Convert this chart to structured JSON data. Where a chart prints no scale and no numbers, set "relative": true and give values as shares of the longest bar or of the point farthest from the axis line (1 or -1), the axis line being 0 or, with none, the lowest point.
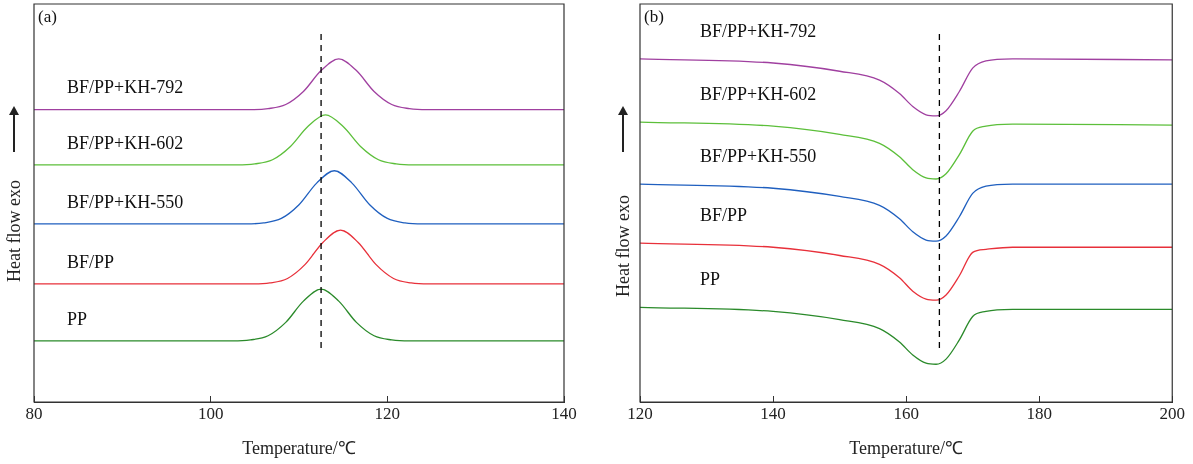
{
  "chart_data": [
    {
      "type": "line",
      "title": "(a)",
      "xlabel": "Temperature/℃",
      "ylabel": "Heat flow exo",
      "relative": true,
      "xlim": [
        80,
        140
      ],
      "xticks": [
        80,
        100,
        120,
        140
      ],
      "grid": false,
      "legend": false,
      "marker": "none",
      "line_style": "solid",
      "ref_lines": [
        {
          "axis": "x",
          "value": 112.5,
          "color": "#000000",
          "line_style": "dashed"
        }
      ],
      "series": [
        {
          "name": "BF/PP+KH-792",
          "color": "#a040a0",
          "x": [
            80,
            104.5,
            106.5,
            108.5,
            110.5,
            112.5,
            114.5,
            116.5,
            118.5,
            120.5,
            122.5,
            124.5,
            140
          ],
          "values": [
            0.852,
            0.852,
            0.855,
            0.867,
            0.905,
            0.966,
            1.0,
            0.966,
            0.905,
            0.867,
            0.855,
            0.852,
            0.852
          ]
        },
        {
          "name": "BF/PP+KH-602",
          "color": "#5cbf3a",
          "x": [
            80,
            103,
            105,
            107,
            109,
            111,
            113,
            115,
            117,
            119,
            121,
            123,
            140
          ],
          "values": [
            0.691,
            0.691,
            0.694,
            0.706,
            0.744,
            0.803,
            0.837,
            0.803,
            0.744,
            0.706,
            0.694,
            0.691,
            0.691
          ]
        },
        {
          "name": "BF/PP+KH-550",
          "color": "#1f5fbf",
          "x": [
            80,
            104,
            106,
            108,
            110,
            112,
            114,
            116,
            118,
            120,
            122,
            124,
            140
          ],
          "values": [
            0.519,
            0.519,
            0.522,
            0.535,
            0.575,
            0.638,
            0.674,
            0.638,
            0.575,
            0.535,
            0.522,
            0.519,
            0.519
          ]
        },
        {
          "name": "BF/PP",
          "color": "#e8303a",
          "x": [
            80,
            104.7,
            106.7,
            108.7,
            110.7,
            112.7,
            114.7,
            116.7,
            118.7,
            120.7,
            122.7,
            124.7,
            140
          ],
          "values": [
            0.344,
            0.344,
            0.347,
            0.36,
            0.401,
            0.465,
            0.501,
            0.465,
            0.401,
            0.36,
            0.347,
            0.344,
            0.344
          ]
        },
        {
          "name": "PP",
          "color": "#2a8a2a",
          "x": [
            80,
            102.5,
            104.5,
            106.5,
            108.5,
            110.5,
            112.5,
            114.5,
            116.5,
            118.5,
            120.5,
            122.5,
            140
          ],
          "values": [
            0.178,
            0.178,
            0.181,
            0.193,
            0.232,
            0.294,
            0.329,
            0.294,
            0.232,
            0.193,
            0.181,
            0.178,
            0.178
          ]
        }
      ]
    },
    {
      "type": "line",
      "title": "(b)",
      "xlabel": "Temperature/℃",
      "ylabel": "Heat flow exo",
      "relative": true,
      "xlim": [
        120,
        200
      ],
      "xticks": [
        120,
        140,
        160,
        180,
        200
      ],
      "grid": false,
      "legend": false,
      "marker": "none",
      "line_style": "solid",
      "ref_lines": [
        {
          "axis": "x",
          "value": 165,
          "color": "#000000",
          "line_style": "dashed"
        }
      ],
      "series": [
        {
          "name": "BF/PP+KH-792",
          "color": "#a040a0",
          "x": [
            120,
            140,
            150,
            156,
            159,
            161,
            163,
            164.5,
            166,
            168,
            170,
            172,
            176,
            200
          ],
          "values": [
            1.0,
            0.988,
            0.964,
            0.938,
            0.899,
            0.861,
            0.837,
            0.834,
            0.849,
            0.905,
            0.973,
            0.994,
            1.0,
            0.997
          ]
        },
        {
          "name": "BF/PP+KH-602",
          "color": "#5cbf3a",
          "x": [
            120,
            140,
            150,
            156,
            159,
            161,
            163,
            164.5,
            166,
            168,
            170,
            172,
            176,
            200
          ],
          "values": [
            0.816,
            0.804,
            0.78,
            0.754,
            0.715,
            0.677,
            0.653,
            0.65,
            0.665,
            0.721,
            0.789,
            0.804,
            0.81,
            0.807
          ]
        },
        {
          "name": "BF/PP+KH-550",
          "color": "#1f5fbf",
          "x": [
            120,
            140,
            150,
            156,
            159,
            161,
            163,
            164.5,
            166,
            168,
            170,
            172,
            176,
            200
          ],
          "values": [
            0.635,
            0.623,
            0.599,
            0.573,
            0.534,
            0.496,
            0.472,
            0.469,
            0.484,
            0.54,
            0.608,
            0.629,
            0.635,
            0.635
          ]
        },
        {
          "name": "BF/PP",
          "color": "#e8303a",
          "x": [
            120,
            140,
            150,
            156,
            159,
            161,
            163,
            164.5,
            166,
            168,
            170,
            172,
            176,
            200
          ],
          "values": [
            0.463,
            0.451,
            0.427,
            0.401,
            0.362,
            0.323,
            0.3,
            0.297,
            0.312,
            0.368,
            0.436,
            0.445,
            0.451,
            0.451
          ]
        },
        {
          "name": "PP",
          "color": "#2a8a2a",
          "x": [
            120,
            140,
            150,
            156,
            159,
            161,
            163,
            164.5,
            166,
            168,
            170,
            172,
            176,
            200
          ],
          "values": [
            0.276,
            0.264,
            0.24,
            0.214,
            0.175,
            0.137,
            0.113,
            0.11,
            0.125,
            0.181,
            0.249,
            0.264,
            0.27,
            0.27
          ]
        }
      ]
    }
  ]
}
